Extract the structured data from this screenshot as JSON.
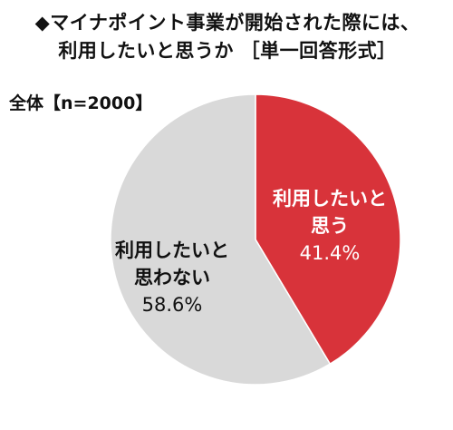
{
  "title_line1": "◆マイナポイント事業が開始された際には、",
  "title_line2": "利用したいと思うか ［単一回答形式］",
  "sample_label": "全体【n=2000】",
  "chart_data": {
    "type": "pie",
    "slices": [
      {
        "label_lines": [
          "利用したいと",
          "思う"
        ],
        "value": 41.4,
        "value_label": "41.4%",
        "color": "#d8333a",
        "text_color": "#ffffff"
      },
      {
        "label_lines": [
          "利用したいと",
          "思わない"
        ],
        "value": 58.6,
        "value_label": "58.6%",
        "color": "#d9d9d9",
        "text_color": "#111111"
      }
    ]
  }
}
